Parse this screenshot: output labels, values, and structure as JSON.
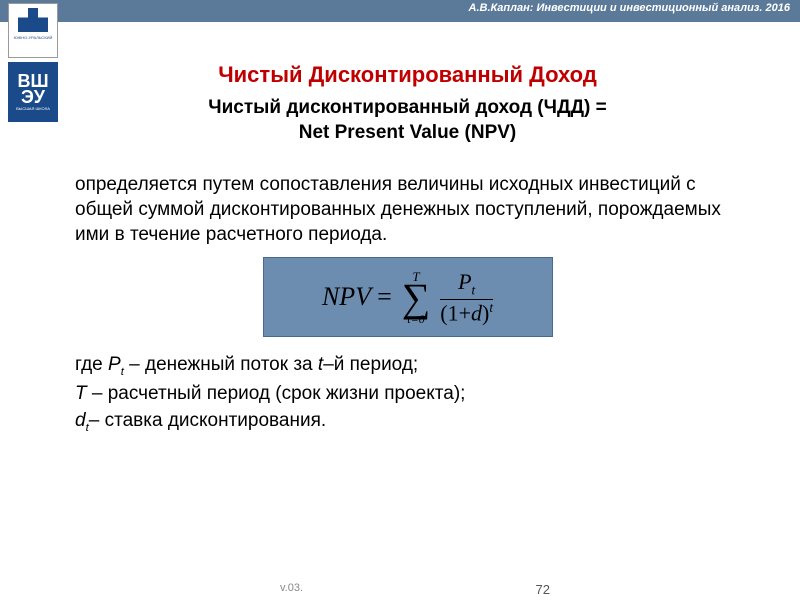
{
  "header": {
    "author_text": "А.В.Каплан: Инвестиции и инвестиционный анализ. 2016"
  },
  "logos": {
    "logo1_caption": "ЮЖНО-УРАЛЬСКИЙ",
    "logo2_line1": "ВШ",
    "logo2_line2": "ЭУ",
    "logo2_caption": "ВЫСШАЯ ШКОЛА"
  },
  "title": "Чистый Дисконтированный Доход",
  "subtitle_line1": "Чистый дисконтированный доход (ЧДД) =",
  "subtitle_line2": "Net Present Value (NPV)",
  "description": "определяется путем сопоставления величины исходных инвестиций с общей суммой дисконтированных денежных поступлений, порождаемых ими в течение расчетного периода.",
  "formula": {
    "lhs": "NPV",
    "eq": "=",
    "sum_upper": "T",
    "sum_lower": "t=0",
    "numerator_base": "P",
    "numerator_sub": "t",
    "denom_open": "(1",
    "denom_plus": "+",
    "denom_var": "d",
    "denom_close": ")",
    "denom_sup": "t",
    "box_bg": "#6d8db0",
    "box_border": "#4a6a8a"
  },
  "legend": {
    "line1_pre": "где ",
    "line1_var": "P",
    "line1_sub": "t",
    "line1_post": " – денежный поток за ",
    "line1_var2": "t",
    "line1_end": "–й период;",
    "line2_var": "T",
    "line2_post": " – расчетный период (срок жизни проекта);",
    "line3_var": "d",
    "line3_sub": "t",
    "line3_post": "– ставка дисконтирования."
  },
  "footer": {
    "version": "v.03.",
    "page": "72"
  },
  "colors": {
    "header_bg": "#5b7a9a",
    "title_color": "#c00000",
    "text_color": "#000000",
    "logo_blue": "#1a4a8a"
  }
}
